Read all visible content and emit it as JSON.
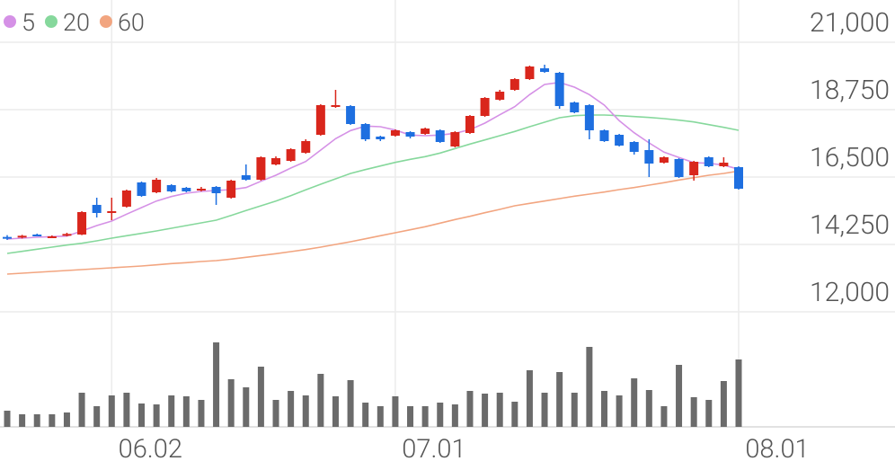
{
  "chart_data": {
    "type": "candlestick",
    "categories": [
      null,
      null,
      null,
      null,
      null,
      null,
      null,
      "06.02",
      null,
      null,
      null,
      null,
      null,
      null,
      null,
      null,
      null,
      null,
      null,
      null,
      null,
      null,
      null,
      null,
      null,
      null,
      "07.01",
      null,
      null,
      null,
      null,
      null,
      null,
      null,
      null,
      null,
      null,
      null,
      null,
      null,
      null,
      null,
      null,
      null,
      null,
      null,
      null,
      null,
      null,
      "08.01"
    ],
    "open": [
      14500,
      14480,
      14580,
      14500,
      14550,
      14580,
      15570,
      15330,
      15510,
      16320,
      15990,
      16230,
      16140,
      16080,
      16170,
      15810,
      16560,
      16410,
      16920,
      17040,
      17310,
      17910,
      18870,
      18870,
      18270,
      17850,
      17880,
      18000,
      17940,
      18060,
      17520,
      17970,
      18540,
      19080,
      19410,
      19770,
      20130,
      19980,
      18990,
      18900,
      18060,
      17910,
      17670,
      17400,
      16980,
      17100,
      16560,
      17160,
      16860,
      16830
    ],
    "close": [
      14450,
      14540,
      14550,
      14520,
      14600,
      15330,
      15300,
      15360,
      16050,
      15870,
      16410,
      16020,
      16020,
      16110,
      15960,
      16380,
      16410,
      17160,
      17130,
      17430,
      17700,
      18900,
      18900,
      18270,
      17760,
      17760,
      18060,
      17850,
      18120,
      17670,
      18000,
      18540,
      19140,
      19350,
      19770,
      20190,
      20010,
      18870,
      18660,
      18060,
      17700,
      17550,
      17340,
      16950,
      17160,
      16500,
      17010,
      16860,
      16980,
      16110
    ],
    "high": [
      14560,
      14570,
      14610,
      14550,
      14640,
      15360,
      15810,
      15810,
      16080,
      16350,
      16470,
      16260,
      16170,
      16170,
      16200,
      16410,
      16920,
      17190,
      17190,
      17460,
      17760,
      18930,
      19410,
      18900,
      18300,
      17880,
      18090,
      18030,
      18150,
      18090,
      18030,
      18570,
      19170,
      19410,
      19800,
      20220,
      20250,
      20010,
      19020,
      18930,
      18090,
      17940,
      17700,
      17760,
      17190,
      17130,
      17040,
      17190,
      17160,
      16860
    ],
    "low": [
      14400,
      14450,
      14520,
      14480,
      14520,
      14560,
      15150,
      15060,
      15480,
      15840,
      15960,
      15990,
      15990,
      16020,
      15570,
      15780,
      16380,
      16380,
      16890,
      17010,
      17280,
      17880,
      18810,
      18240,
      17700,
      17700,
      17850,
      17790,
      17910,
      17640,
      17490,
      17940,
      18510,
      19050,
      19380,
      19740,
      19980,
      18780,
      18630,
      17760,
      17670,
      17520,
      17250,
      16500,
      16950,
      16470,
      16380,
      16830,
      16830,
      16080
    ],
    "up_color": "#d9261c",
    "down_color": "#1e6fe0",
    "series": [
      {
        "name": "5",
        "color": "#d591e6",
        "values": [
          14430,
          14460,
          14490,
          14510,
          14530,
          14700,
          14880,
          15030,
          15260,
          15480,
          15700,
          15850,
          15960,
          16020,
          16050,
          16080,
          16150,
          16360,
          16560,
          16800,
          17020,
          17400,
          17780,
          18050,
          18200,
          18180,
          18070,
          17900,
          17880,
          17900,
          17960,
          18080,
          18300,
          18580,
          18850,
          19250,
          19590,
          19660,
          19500,
          19250,
          18900,
          18380,
          17980,
          17640,
          17330,
          17150,
          16980,
          16960,
          16900,
          16760
        ]
      },
      {
        "name": "20",
        "color": "#86d89c",
        "values": [
          13950,
          14020,
          14090,
          14160,
          14230,
          14290,
          14370,
          14460,
          14540,
          14620,
          14700,
          14790,
          14880,
          14970,
          15060,
          15220,
          15380,
          15540,
          15700,
          15880,
          16070,
          16260,
          16440,
          16620,
          16750,
          16870,
          16990,
          17090,
          17180,
          17300,
          17450,
          17600,
          17740,
          17880,
          18020,
          18180,
          18330,
          18480,
          18550,
          18570,
          18570,
          18550,
          18520,
          18490,
          18450,
          18400,
          18340,
          18250,
          18160,
          18060
        ]
      },
      {
        "name": "60",
        "color": "#f2a580",
        "values": [
          13260,
          13290,
          13320,
          13350,
          13380,
          13410,
          13440,
          13470,
          13500,
          13530,
          13570,
          13610,
          13640,
          13680,
          13710,
          13760,
          13820,
          13880,
          13940,
          14010,
          14080,
          14160,
          14250,
          14340,
          14440,
          14540,
          14640,
          14740,
          14840,
          14960,
          15080,
          15190,
          15310,
          15420,
          15540,
          15620,
          15700,
          15780,
          15860,
          15930,
          16000,
          16080,
          16150,
          16230,
          16310,
          16400,
          16480,
          16560,
          16620,
          16700
        ]
      }
    ],
    "ylim": [
      12000,
      21000
    ],
    "yticks": [
      {
        "value": 12000,
        "label": "12,000"
      },
      {
        "value": 14250,
        "label": "14,250"
      },
      {
        "value": 16500,
        "label": "16,500"
      },
      {
        "value": 18750,
        "label": "18,750"
      },
      {
        "value": 21000,
        "label": "21,000"
      }
    ],
    "volume": [
      18,
      14,
      14,
      14,
      16,
      38,
      23,
      35,
      38,
      26,
      25,
      35,
      34,
      30,
      94,
      53,
      44,
      67,
      30,
      40,
      35,
      59,
      34,
      52,
      27,
      23,
      34,
      23,
      23,
      27,
      25,
      40,
      37,
      38,
      28,
      63,
      38,
      61,
      38,
      89,
      40,
      35,
      54,
      41,
      23,
      69,
      33,
      30,
      51,
      75
    ],
    "volume_ylim": [
      0,
      128
    ],
    "volume_color": "#6b6b6b",
    "grid": true
  }
}
